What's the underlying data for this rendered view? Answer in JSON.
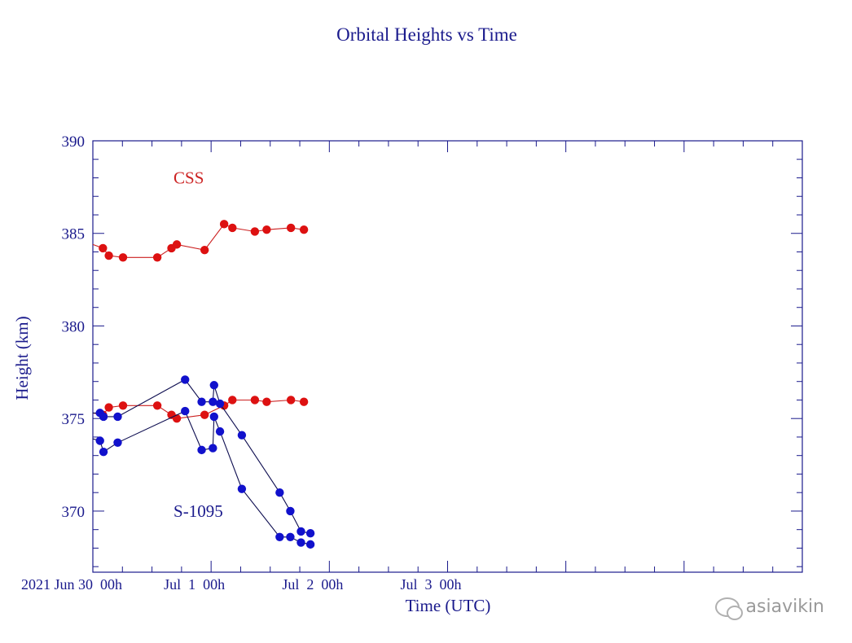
{
  "chart_data": {
    "type": "line",
    "title": "Orbital Heights vs Time",
    "xlabel": "Time (UTC)",
    "ylabel": "Height (km)",
    "ylim": [
      366.7,
      390
    ],
    "xlim": [
      -0.5,
      5.5
    ],
    "x_unit": "fraction of a day since 2021 Jun 30 00h; axis starts 12 h earlier",
    "yticks": [
      370,
      375,
      380,
      385,
      390
    ],
    "ytick_labels": [
      "370",
      "375",
      "380",
      "385",
      "390"
    ],
    "xticks": [
      {
        "x": -0.5,
        "label": "2021 Jun 30  00h"
      },
      {
        "x": 0.5,
        "label": "Jul  1  00h"
      },
      {
        "x": 1.5,
        "label": "Jul  2  00h"
      },
      {
        "x": 2.5,
        "label": "Jul  3  00h"
      }
    ],
    "annotations": [
      {
        "text": "CSS",
        "x": 0.32,
        "y": 388,
        "color": "#cc2222"
      },
      {
        "text": "S-1095",
        "x": 0.32,
        "y": 370,
        "color": "#1a1a8c"
      }
    ],
    "series": [
      {
        "name": "CSS upper",
        "color": "#dd1111",
        "x": [
          -0.5,
          -0.415,
          -0.365,
          -0.245,
          0.045,
          0.165,
          0.21,
          0.445,
          0.61,
          0.68,
          0.87,
          0.97,
          1.175,
          1.285
        ],
        "y": [
          384.4,
          384.2,
          383.8,
          383.7,
          383.7,
          384.2,
          384.4,
          384.1,
          385.5,
          385.3,
          385.1,
          385.2,
          385.3,
          385.2
        ]
      },
      {
        "name": "CSS lower",
        "color": "#dd1111",
        "x": [
          -0.5,
          -0.415,
          -0.365,
          -0.245,
          0.045,
          0.165,
          0.21,
          0.445,
          0.61,
          0.68,
          0.87,
          0.97,
          1.175,
          1.285
        ],
        "y": [
          375.3,
          375.2,
          375.6,
          375.7,
          375.7,
          375.2,
          375.0,
          375.2,
          375.7,
          376.0,
          376.0,
          375.9,
          376.0,
          375.9
        ]
      },
      {
        "name": "S-1095 upper",
        "color": "#1111cc",
        "x": [
          -0.5,
          -0.44,
          -0.41,
          -0.29,
          0.28,
          0.42,
          0.515,
          0.525,
          0.575,
          0.76,
          1.08,
          1.17,
          1.26,
          1.34
        ],
        "y": [
          375.3,
          375.3,
          375.1,
          375.1,
          377.1,
          375.9,
          375.9,
          376.8,
          375.8,
          374.1,
          371.0,
          370.0,
          368.9,
          368.8
        ]
      },
      {
        "name": "S-1095 lower",
        "color": "#1111cc",
        "x": [
          -0.5,
          -0.44,
          -0.41,
          -0.29,
          0.28,
          0.42,
          0.515,
          0.525,
          0.575,
          0.76,
          1.08,
          1.17,
          1.26,
          1.34
        ],
        "y": [
          373.9,
          373.8,
          373.2,
          373.7,
          375.4,
          373.3,
          373.4,
          375.1,
          374.3,
          371.2,
          368.6,
          368.6,
          368.3,
          368.2
        ]
      }
    ]
  },
  "watermark": "asiavikin"
}
